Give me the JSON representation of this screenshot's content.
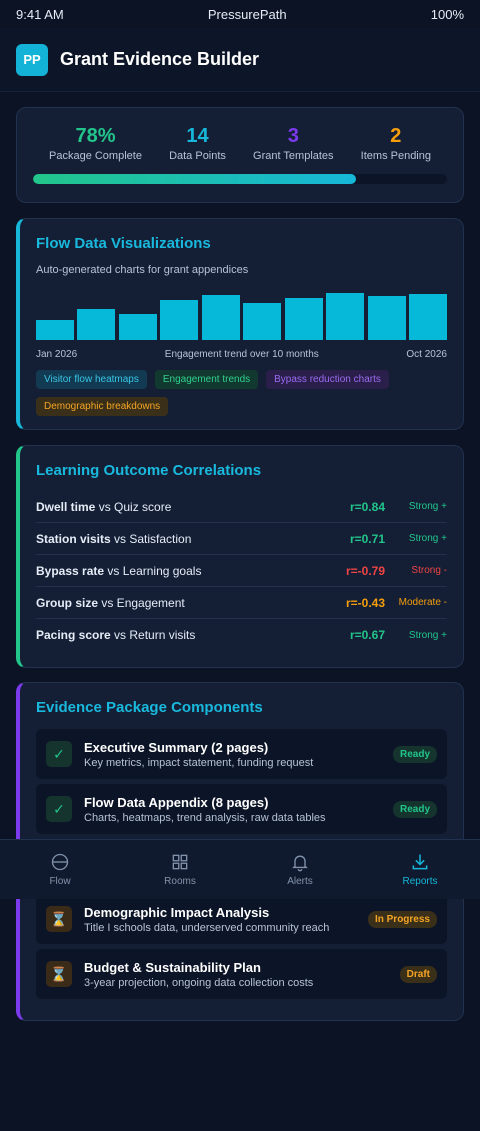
{
  "status_bar": {
    "time": "9:41 AM",
    "carrier": "PressurePath",
    "battery": "100%"
  },
  "header": {
    "logo": "PP",
    "title": "Grant Evidence Builder"
  },
  "stats": {
    "items": [
      {
        "value": "78%",
        "label": "Package Complete",
        "color": "#22c58a"
      },
      {
        "value": "14",
        "label": "Data Points",
        "color": "#16b7d8"
      },
      {
        "value": "3",
        "label": "Grant Templates",
        "color": "#7c3aed"
      },
      {
        "value": "2",
        "label": "Items Pending",
        "color": "#f59e0b"
      }
    ],
    "progress": 0.78
  },
  "flow": {
    "title": "Flow Data Visualizations",
    "subtitle": "Auto-generated charts for grant appendices",
    "axis_start": "Jan 2026",
    "axis_mid": "Engagement trend over 10 months",
    "axis_end": "Oct 2026",
    "bar_values": [
      40,
      62,
      52,
      80,
      90,
      74,
      84,
      94,
      88,
      92
    ],
    "bar_color": "#07b9d9",
    "tags": [
      {
        "label": "Visitor flow heatmaps",
        "bg": "#123a52",
        "fg": "#38c6e6"
      },
      {
        "label": "Engagement trends",
        "bg": "#12392f",
        "fg": "#2fd08f"
      },
      {
        "label": "Bypass reduction charts",
        "bg": "#2a1f4a",
        "fg": "#9b6bf2"
      },
      {
        "label": "Demographic breakdowns",
        "bg": "#3a2f18",
        "fg": "#f5a524"
      }
    ]
  },
  "correlations": {
    "title": "Learning Outcome Correlations",
    "rows": [
      {
        "metric": "Dwell time",
        "vs": " vs Quiz score",
        "r": "r=0.84",
        "strength": "Strong +",
        "color": "#22c58a"
      },
      {
        "metric": "Station visits",
        "vs": " vs Satisfaction",
        "r": "r=0.71",
        "strength": "Strong +",
        "color": "#22c58a"
      },
      {
        "metric": "Bypass rate",
        "vs": " vs Learning goals",
        "r": "r=-0.79",
        "strength": "Strong -",
        "color": "#ef4444"
      },
      {
        "metric": "Group size",
        "vs": " vs Engagement",
        "r": "r=-0.43",
        "strength": "Moderate -",
        "color": "#f59e0b"
      },
      {
        "metric": "Pacing score",
        "vs": " vs Return visits",
        "r": "r=0.67",
        "strength": "Strong +",
        "color": "#22c58a"
      }
    ]
  },
  "evidence": {
    "title": "Evidence Package Components",
    "items": [
      {
        "title": "Executive Summary (2 pages)",
        "desc": "Key metrics, impact statement, funding request",
        "badge": "Ready",
        "icon": "check-icon",
        "icon_glyph": "✓",
        "state": "ready"
      },
      {
        "title": "Flow Data Appendix (8 pages)",
        "desc": "Charts, heatmaps, trend analysis, raw data tables",
        "badge": "Ready",
        "icon": "check-icon",
        "icon_glyph": "✓",
        "state": "ready"
      },
      {
        "title": "Demographic Impact Analysis",
        "desc": "Title I schools data, underserved community reach",
        "badge": "In Progress",
        "icon": "hourglass-icon",
        "icon_glyph": "⌛",
        "state": "progress"
      },
      {
        "title": "Budget & Sustainability Plan",
        "desc": "3-year projection, ongoing data collection costs",
        "badge": "Draft",
        "icon": "hourglass-icon",
        "icon_glyph": "⌛",
        "state": "draft"
      }
    ]
  },
  "tabs": [
    {
      "label": "Flow",
      "icon": "flow-icon",
      "active": false
    },
    {
      "label": "Rooms",
      "icon": "rooms-grid-icon",
      "active": false
    },
    {
      "label": "Alerts",
      "icon": "bell-icon",
      "active": false
    },
    {
      "label": "Reports",
      "icon": "download-icon",
      "active": true
    }
  ]
}
